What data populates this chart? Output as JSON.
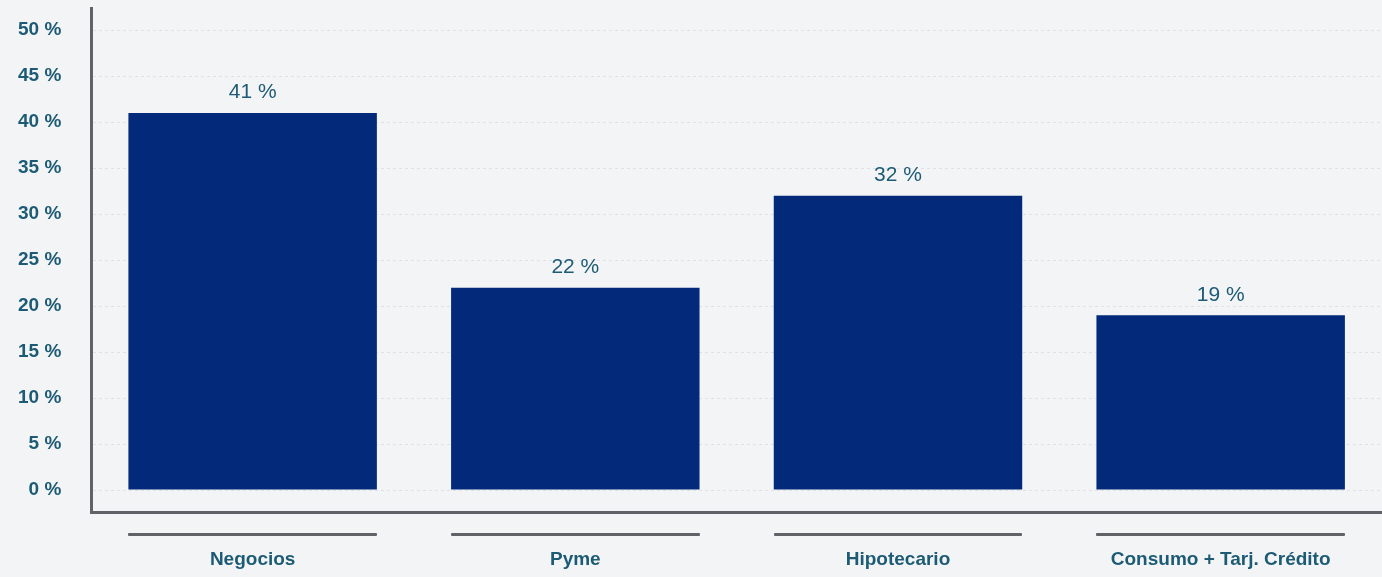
{
  "chart_data": {
    "type": "bar",
    "categories": [
      "Negocios",
      "Pyme",
      "Hipotecario",
      "Consumo + Tarj. Crédito"
    ],
    "values": [
      41,
      22,
      32,
      19
    ],
    "color": "#02297a",
    "value_labels": [
      "41 %",
      "22 %",
      "32 %",
      "19 %"
    ],
    "ylim": [
      -2.4,
      52.4
    ],
    "yticks": [
      {
        "value": 0,
        "label": "0 %"
      },
      {
        "value": 5,
        "label": "5 %"
      },
      {
        "value": 10,
        "label": "10 %"
      },
      {
        "value": 15,
        "label": "15 %"
      },
      {
        "value": 20,
        "label": "20 %"
      },
      {
        "value": 25,
        "label": "25 %"
      },
      {
        "value": 30,
        "label": "30 %"
      },
      {
        "value": 35,
        "label": "35 %"
      },
      {
        "value": 40,
        "label": "40 %"
      },
      {
        "value": 45,
        "label": "45 %"
      },
      {
        "value": 50,
        "label": "50 %"
      }
    ],
    "grid": "y"
  }
}
